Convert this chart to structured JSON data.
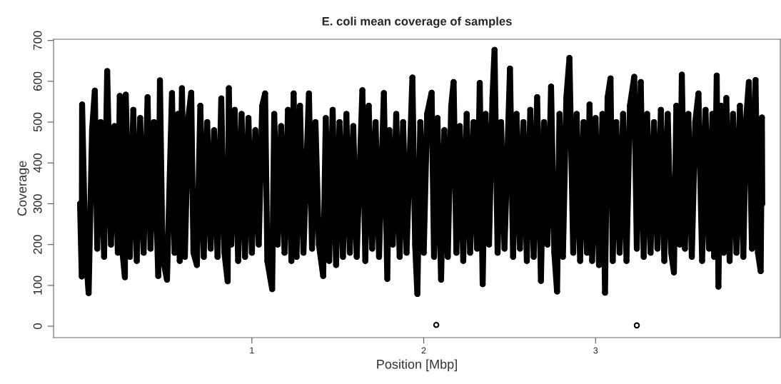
{
  "chart_data": {
    "type": "line",
    "title": "E. coli mean coverage of samples",
    "xlabel": "Position [Mbp]",
    "ylabel": "Coverage",
    "xlim": [
      -0.154,
      4.075
    ],
    "xticks": [
      1,
      2,
      3
    ],
    "ylim": [
      -28,
      703
    ],
    "yticks": [
      0,
      100,
      200,
      300,
      400,
      500,
      600,
      700
    ],
    "grid": false,
    "marker": "circle",
    "line_style": "solid",
    "series": [
      {
        "color": "#000000",
        "x": [
          0.0,
          0.01,
          0.012,
          0.03,
          0.05,
          0.07,
          0.086,
          0.1,
          0.12,
          0.14,
          0.158,
          0.18,
          0.2,
          0.22,
          0.231,
          0.245,
          0.261,
          0.266,
          0.29,
          0.31,
          0.33,
          0.35,
          0.37,
          0.393,
          0.41,
          0.43,
          0.455,
          0.465,
          0.48,
          0.506,
          0.535,
          0.55,
          0.57,
          0.58,
          0.593,
          0.61,
          0.63,
          0.647,
          0.66,
          0.68,
          0.7,
          0.72,
          0.74,
          0.76,
          0.78,
          0.8,
          0.822,
          0.84,
          0.859,
          0.866,
          0.88,
          0.9,
          0.92,
          0.94,
          0.96,
          0.98,
          1.0,
          1.02,
          1.04,
          1.06,
          1.077,
          1.09,
          1.118,
          1.13,
          1.15,
          1.17,
          1.19,
          1.21,
          1.23,
          1.243,
          1.26,
          1.28,
          1.3,
          1.332,
          1.35,
          1.37,
          1.39,
          1.415,
          1.43,
          1.45,
          1.47,
          1.49,
          1.51,
          1.53,
          1.55,
          1.57,
          1.59,
          1.61,
          1.643,
          1.66,
          1.68,
          1.7,
          1.72,
          1.74,
          1.768,
          1.788,
          1.8,
          1.82,
          1.84,
          1.86,
          1.88,
          1.9,
          1.934,
          1.95,
          1.963,
          1.98,
          2.0,
          2.02,
          2.046,
          2.06,
          2.08,
          2.101,
          2.12,
          2.14,
          2.16,
          2.174,
          2.19,
          2.21,
          2.23,
          2.25,
          2.27,
          2.29,
          2.31,
          2.326,
          2.343,
          2.36,
          2.38,
          2.4,
          2.412,
          2.43,
          2.45,
          2.47,
          2.502,
          2.52,
          2.54,
          2.56,
          2.58,
          2.6,
          2.62,
          2.64,
          2.66,
          2.682,
          2.7,
          2.72,
          2.741,
          2.76,
          2.776,
          2.79,
          2.81,
          2.83,
          2.848,
          2.87,
          2.89,
          2.91,
          2.93,
          2.95,
          2.965,
          2.98,
          3.0,
          3.02,
          3.04,
          3.055,
          3.07,
          3.087,
          3.1,
          3.12,
          3.14,
          3.16,
          3.18,
          3.2,
          3.225,
          3.24,
          3.263,
          3.28,
          3.3,
          3.32,
          3.34,
          3.36,
          3.38,
          3.4,
          3.42,
          3.44,
          3.456,
          3.47,
          3.49,
          3.502,
          3.52,
          3.54,
          3.56,
          3.58,
          3.599,
          3.62,
          3.64,
          3.66,
          3.68,
          3.69,
          3.705,
          3.715,
          3.73,
          3.745,
          3.761,
          3.78,
          3.8,
          3.82,
          3.84,
          3.86,
          3.875,
          3.892,
          3.91,
          3.931,
          3.945,
          3.961,
          3.968,
          3.97
        ],
        "values": [
          300,
          122,
          543,
          200,
          81,
          480,
          577,
          190,
          500,
          170,
          625,
          200,
          490,
          180,
          564,
          190,
          120,
          567,
          170,
          530,
          160,
          510,
          180,
          561,
          190,
          500,
          123,
          602,
          170,
          114,
          571,
          180,
          520,
          160,
          583,
          170,
          510,
          572,
          180,
          150,
          540,
          170,
          500,
          190,
          480,
          170,
          558,
          180,
          110,
          583,
          200,
          530,
          160,
          520,
          170,
          510,
          180,
          480,
          200,
          540,
          570,
          160,
          91,
          520,
          200,
          490,
          180,
          530,
          160,
          570,
          170,
          540,
          180,
          570,
          190,
          500,
          200,
          123,
          510,
          160,
          530,
          150,
          500,
          170,
          520,
          180,
          490,
          170,
          578,
          160,
          540,
          190,
          500,
          170,
          571,
          116,
          480,
          200,
          520,
          170,
          500,
          180,
          609,
          200,
          79,
          500,
          180,
          520,
          572,
          170,
          510,
          114,
          480,
          170,
          540,
          598,
          180,
          490,
          160,
          520,
          180,
          500,
          190,
          596,
          103,
          520,
          200,
          560,
          677,
          180,
          500,
          190,
          631,
          170,
          520,
          190,
          500,
          160,
          530,
          170,
          561,
          111,
          500,
          200,
          587,
          180,
          85,
          520,
          170,
          560,
          657,
          180,
          520,
          160,
          500,
          180,
          543,
          160,
          510,
          150,
          520,
          82,
          560,
          607,
          160,
          500,
          180,
          520,
          160,
          540,
          611,
          190,
          598,
          170,
          520,
          180,
          500,
          190,
          530,
          160,
          520,
          180,
          132,
          540,
          200,
          616,
          190,
          520,
          170,
          500,
          570,
          160,
          530,
          190,
          520,
          170,
          614,
          97,
          540,
          180,
          559,
          160,
          520,
          180,
          540,
          170,
          500,
          598,
          190,
          603,
          180,
          135,
          511,
          300
        ]
      },
      {
        "type": "scatter",
        "color": "#000000",
        "x": [
          2.073,
          3.24
        ],
        "values": [
          3,
          2
        ]
      }
    ]
  }
}
